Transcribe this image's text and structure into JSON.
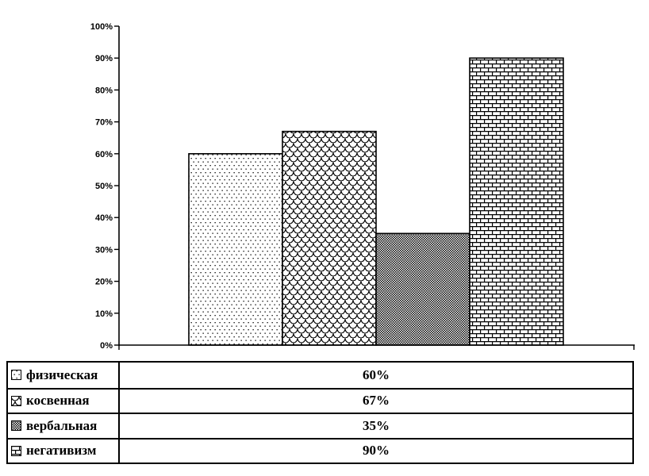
{
  "chart_data": {
    "type": "bar",
    "title": "",
    "xlabel": "",
    "ylabel": "",
    "categories": [
      "физическая",
      "косвенная",
      "вербальная",
      "негативизм"
    ],
    "values": [
      60,
      67,
      35,
      90
    ],
    "value_labels": [
      "60%",
      "67%",
      "35%",
      "90%"
    ],
    "patterns": [
      "dots",
      "scales",
      "dither",
      "bricks"
    ],
    "y_ticks": [
      "0%",
      "10%",
      "20%",
      "30%",
      "40%",
      "50%",
      "60%",
      "70%",
      "80%",
      "90%",
      "100%"
    ],
    "ylim": [
      0,
      100
    ],
    "grid": "off",
    "legend_position": "bottom-table"
  },
  "legend": {
    "rows": [
      {
        "label": "физическая",
        "value": "60%",
        "pattern": "dots"
      },
      {
        "label": "косвенная",
        "value": "67%",
        "pattern": "scales"
      },
      {
        "label": "вербальная",
        "value": "35%",
        "pattern": "dither"
      },
      {
        "label": "негативизм",
        "value": "90%",
        "pattern": "bricks"
      }
    ]
  },
  "colors": {
    "ink": "#000000",
    "background": "#ffffff"
  }
}
